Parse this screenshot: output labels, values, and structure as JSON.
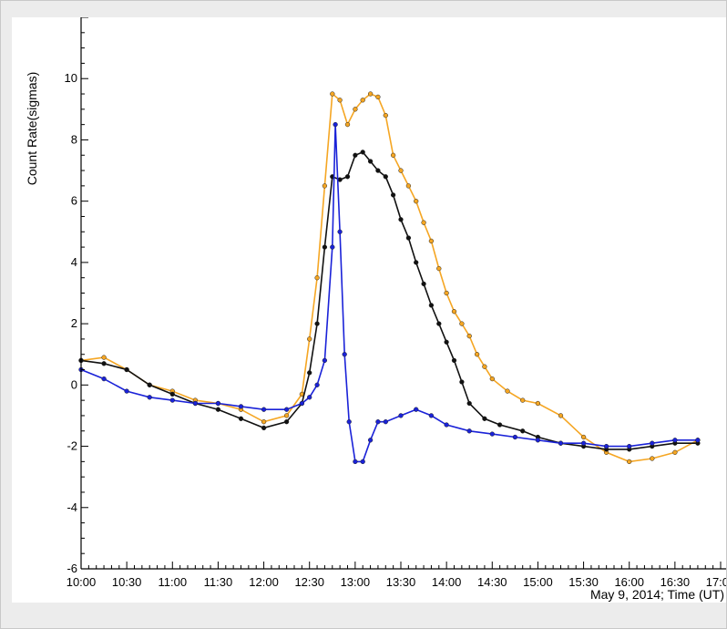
{
  "chart_data": {
    "type": "line",
    "xlabel": "May 9, 2014; Time (UT)",
    "ylabel": "Count Rate(sigmas)",
    "x_unit": "time (UT)",
    "xlim": [
      "10:00",
      "17:00"
    ],
    "ylim": [
      -6,
      12
    ],
    "x_ticks": [
      "10:00",
      "10:30",
      "11:00",
      "11:30",
      "12:00",
      "12:30",
      "13:00",
      "13:30",
      "14:00",
      "14:30",
      "15:00",
      "15:30",
      "16:00",
      "16:30",
      "17:00"
    ],
    "y_ticks": [
      -6,
      -4,
      -2,
      0,
      2,
      4,
      6,
      8,
      10
    ],
    "grid": false,
    "series": [
      {
        "color": "#f5a623",
        "marker": "circle",
        "points": [
          [
            "10:00",
            0.8
          ],
          [
            "10:15",
            0.9
          ],
          [
            "10:30",
            0.5
          ],
          [
            "10:45",
            0.0
          ],
          [
            "11:00",
            -0.2
          ],
          [
            "11:15",
            -0.5
          ],
          [
            "11:30",
            -0.6
          ],
          [
            "11:45",
            -0.8
          ],
          [
            "12:00",
            -1.2
          ],
          [
            "12:15",
            -1.0
          ],
          [
            "12:25",
            -0.3
          ],
          [
            "12:30",
            1.5
          ],
          [
            "12:35",
            3.5
          ],
          [
            "12:40",
            6.5
          ],
          [
            "12:45",
            9.5
          ],
          [
            "12:50",
            9.3
          ],
          [
            "12:55",
            8.5
          ],
          [
            "13:00",
            9.0
          ],
          [
            "13:05",
            9.3
          ],
          [
            "13:10",
            9.5
          ],
          [
            "13:15",
            9.4
          ],
          [
            "13:20",
            8.8
          ],
          [
            "13:25",
            7.5
          ],
          [
            "13:30",
            7.0
          ],
          [
            "13:35",
            6.5
          ],
          [
            "13:40",
            6.0
          ],
          [
            "13:45",
            5.3
          ],
          [
            "13:50",
            4.7
          ],
          [
            "13:55",
            3.8
          ],
          [
            "14:00",
            3.0
          ],
          [
            "14:05",
            2.4
          ],
          [
            "14:10",
            2.0
          ],
          [
            "14:15",
            1.6
          ],
          [
            "14:20",
            1.0
          ],
          [
            "14:25",
            0.6
          ],
          [
            "14:30",
            0.2
          ],
          [
            "14:40",
            -0.2
          ],
          [
            "14:50",
            -0.5
          ],
          [
            "15:00",
            -0.6
          ],
          [
            "15:15",
            -1.0
          ],
          [
            "15:30",
            -1.7
          ],
          [
            "15:45",
            -2.2
          ],
          [
            "16:00",
            -2.5
          ],
          [
            "16:15",
            -2.4
          ],
          [
            "16:30",
            -2.2
          ],
          [
            "16:45",
            -1.8
          ]
        ]
      },
      {
        "color": "#111111",
        "marker": "circle",
        "points": [
          [
            "10:00",
            0.8
          ],
          [
            "10:15",
            0.7
          ],
          [
            "10:30",
            0.5
          ],
          [
            "10:45",
            0.0
          ],
          [
            "11:00",
            -0.3
          ],
          [
            "11:15",
            -0.6
          ],
          [
            "11:30",
            -0.8
          ],
          [
            "11:45",
            -1.1
          ],
          [
            "12:00",
            -1.4
          ],
          [
            "12:15",
            -1.2
          ],
          [
            "12:25",
            -0.6
          ],
          [
            "12:30",
            0.4
          ],
          [
            "12:35",
            2.0
          ],
          [
            "12:40",
            4.5
          ],
          [
            "12:45",
            6.8
          ],
          [
            "12:50",
            6.7
          ],
          [
            "12:55",
            6.8
          ],
          [
            "13:00",
            7.5
          ],
          [
            "13:05",
            7.6
          ],
          [
            "13:10",
            7.3
          ],
          [
            "13:15",
            7.0
          ],
          [
            "13:20",
            6.8
          ],
          [
            "13:25",
            6.2
          ],
          [
            "13:30",
            5.4
          ],
          [
            "13:35",
            4.8
          ],
          [
            "13:40",
            4.0
          ],
          [
            "13:45",
            3.3
          ],
          [
            "13:50",
            2.6
          ],
          [
            "13:55",
            2.0
          ],
          [
            "14:00",
            1.4
          ],
          [
            "14:05",
            0.8
          ],
          [
            "14:10",
            0.1
          ],
          [
            "14:15",
            -0.6
          ],
          [
            "14:25",
            -1.1
          ],
          [
            "14:35",
            -1.3
          ],
          [
            "14:50",
            -1.5
          ],
          [
            "15:00",
            -1.7
          ],
          [
            "15:15",
            -1.9
          ],
          [
            "15:30",
            -2.0
          ],
          [
            "15:45",
            -2.1
          ],
          [
            "16:00",
            -2.1
          ],
          [
            "16:15",
            -2.0
          ],
          [
            "16:30",
            -1.9
          ],
          [
            "16:45",
            -1.9
          ]
        ]
      },
      {
        "color": "#1a22d8",
        "marker": "circle",
        "points": [
          [
            "10:00",
            0.5
          ],
          [
            "10:15",
            0.2
          ],
          [
            "10:30",
            -0.2
          ],
          [
            "10:45",
            -0.4
          ],
          [
            "11:00",
            -0.5
          ],
          [
            "11:15",
            -0.6
          ],
          [
            "11:30",
            -0.6
          ],
          [
            "11:45",
            -0.7
          ],
          [
            "12:00",
            -0.8
          ],
          [
            "12:15",
            -0.8
          ],
          [
            "12:25",
            -0.6
          ],
          [
            "12:30",
            -0.4
          ],
          [
            "12:35",
            0.0
          ],
          [
            "12:40",
            0.8
          ],
          [
            "12:45",
            4.5
          ],
          [
            "12:47",
            8.5
          ],
          [
            "12:50",
            5.0
          ],
          [
            "12:53",
            1.0
          ],
          [
            "12:56",
            -1.2
          ],
          [
            "13:00",
            -2.5
          ],
          [
            "13:05",
            -2.5
          ],
          [
            "13:10",
            -1.8
          ],
          [
            "13:15",
            -1.2
          ],
          [
            "13:20",
            -1.2
          ],
          [
            "13:30",
            -1.0
          ],
          [
            "13:40",
            -0.8
          ],
          [
            "13:50",
            -1.0
          ],
          [
            "14:00",
            -1.3
          ],
          [
            "14:15",
            -1.5
          ],
          [
            "14:30",
            -1.6
          ],
          [
            "14:45",
            -1.7
          ],
          [
            "15:00",
            -1.8
          ],
          [
            "15:15",
            -1.9
          ],
          [
            "15:30",
            -1.9
          ],
          [
            "15:45",
            -2.0
          ],
          [
            "16:00",
            -2.0
          ],
          [
            "16:15",
            -1.9
          ],
          [
            "16:30",
            -1.8
          ],
          [
            "16:45",
            -1.8
          ]
        ]
      }
    ]
  }
}
